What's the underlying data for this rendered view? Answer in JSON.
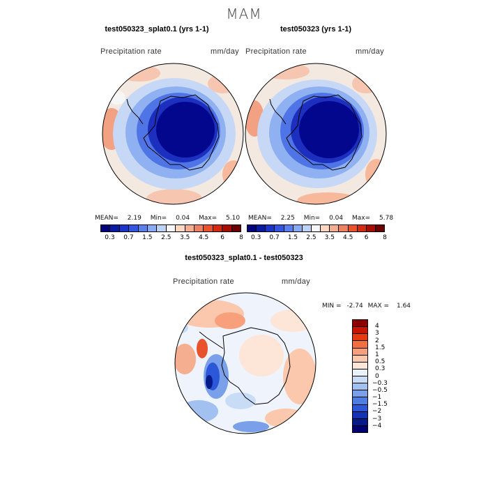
{
  "season": "MAM",
  "panels": [
    {
      "title": "test050323_splat0.1 (yrs 1-1)",
      "label": "Precipitation rate",
      "units": "mm/day",
      "stats": {
        "mean_label": "MEAN=",
        "mean": "2.19",
        "min_label": "Min=",
        "min": "0.04",
        "max_label": "Max=",
        "max": "5.10"
      }
    },
    {
      "title": "test050323 (yrs 1-1)",
      "label": "Precipitation rate",
      "units": "mm/day",
      "stats": {
        "mean_label": "MEAN=",
        "mean": "2.25",
        "min_label": "Min=",
        "min": "0.04",
        "max_label": "Max=",
        "max": "5.78"
      }
    },
    {
      "title": "test050323_splat0.1 - test050323",
      "label": "Precipitation rate",
      "units": "mm/day",
      "stats": {
        "min_label": "MIN =",
        "min": "-2.74",
        "max_label": "MAX =",
        "max": "1.64"
      }
    }
  ],
  "abs_colorbar": {
    "colors": [
      "#00007f",
      "#0a1aa0",
      "#1a35c8",
      "#3355e0",
      "#5a80ef",
      "#8aaaf3",
      "#bcd2f7",
      "#f7f7f7",
      "#fbd7c2",
      "#f6ae90",
      "#ef8060",
      "#e8532e",
      "#d42a12",
      "#a60d05",
      "#6b0000"
    ],
    "ticks": [
      "0.3",
      "0.7",
      "1.5",
      "2.5",
      "3.5",
      "4.5",
      "6",
      "8"
    ]
  },
  "diff_colorbar": {
    "colors": [
      "#8c0000",
      "#c81400",
      "#e83a10",
      "#f56e40",
      "#f8a07c",
      "#fbc7ad",
      "#fde6d8",
      "#e9f1fb",
      "#c9dcf6",
      "#a2c0f0",
      "#7aa0ea",
      "#4f7ee2",
      "#2c57d8",
      "#1433b4",
      "#071a8a",
      "#000070"
    ],
    "ticks": [
      "4",
      "3",
      "2",
      "1.5",
      "1",
      "0.5",
      "0.3",
      "0",
      "−0.3",
      "−0.5",
      "−1",
      "−1.5",
      "−2",
      "−3",
      "−4"
    ]
  }
}
